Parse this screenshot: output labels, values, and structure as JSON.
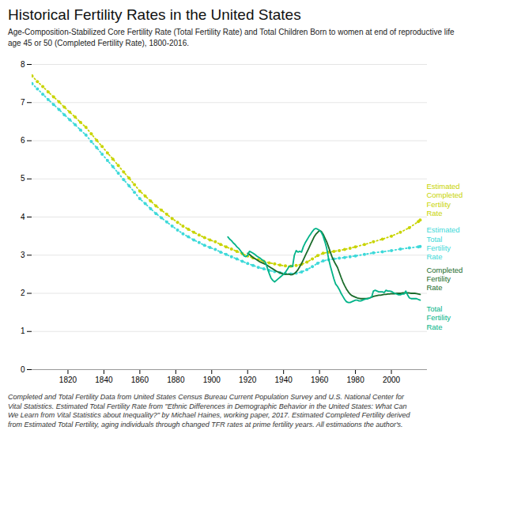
{
  "chart_data": {
    "type": "line",
    "title": "Historical Fertility Rates in the United States",
    "subtitle": "Age-Composition-Stabilized Core Fertility Rate (Total Fertility Rate) and Total Children Born to women at end of reproductive life\nage 45 or 50 (Completed Fertility Rate), 1800-2016.",
    "footnote": "Completed and Total Fertility Data from United States Census Bureau Current Population Survey and U.S. National Center for\nVital Statistics. Estimated Total Fertility Rate from \"Ethnic Differences in Demographic Behavior in the United States: What Can\nWe Learn from Vital Statistics about Inequality?\" by Michael Haines, working paper, 2017. Estimated Completed Fertility derived\nfrom Estimated Total Fertility, aging individuals through changed TFR rates at prime fertility years. All estimations the author's.",
    "xlim": [
      1800,
      2020
    ],
    "ylim": [
      0,
      8
    ],
    "yticks": [
      0,
      1,
      2,
      3,
      4,
      5,
      6,
      7,
      8
    ],
    "xticks": [
      1820,
      1840,
      1860,
      1880,
      1900,
      1920,
      1940,
      1960,
      1980,
      2000
    ],
    "grid": true,
    "series": [
      {
        "name": "Estimated Completed Fertility Rate",
        "color": "#c8d400",
        "line_style": "dotted",
        "marker": "circle",
        "x": [
          1800,
          1803,
          1806,
          1809,
          1812,
          1815,
          1818,
          1821,
          1824,
          1827,
          1830,
          1833,
          1836,
          1839,
          1842,
          1845,
          1848,
          1851,
          1854,
          1857,
          1860,
          1863,
          1866,
          1869,
          1872,
          1875,
          1878,
          1881,
          1884,
          1887,
          1890,
          1893,
          1896,
          1899,
          1902,
          1905,
          1908,
          1911,
          1914,
          1917,
          1920,
          1923,
          1926,
          1929,
          1932,
          1935,
          1938,
          1941,
          1944,
          1947,
          1950,
          1953,
          1956,
          1959,
          1962,
          1965,
          1968,
          1971,
          1974,
          1977,
          1980,
          1985,
          1990,
          1995,
          2000,
          2005,
          2010,
          2015,
          2016
        ],
        "values": [
          7.7,
          7.55,
          7.42,
          7.28,
          7.15,
          7.02,
          6.88,
          6.75,
          6.62,
          6.48,
          6.35,
          6.18,
          6.01,
          5.85,
          5.68,
          5.52,
          5.35,
          5.18,
          5.02,
          4.85,
          4.68,
          4.55,
          4.42,
          4.29,
          4.18,
          4.07,
          3.96,
          3.86,
          3.76,
          3.68,
          3.6,
          3.53,
          3.46,
          3.4,
          3.35,
          3.28,
          3.22,
          3.16,
          3.1,
          3.04,
          2.98,
          2.93,
          2.88,
          2.84,
          2.8,
          2.77,
          2.74,
          2.72,
          2.71,
          2.73,
          2.76,
          2.82,
          2.9,
          2.99,
          3.05,
          3.08,
          3.1,
          3.12,
          3.15,
          3.18,
          3.22,
          3.28,
          3.35,
          3.42,
          3.5,
          3.6,
          3.72,
          3.88,
          3.92
        ]
      },
      {
        "name": "Estimated Total Fertility Rate",
        "color": "#3dd9d9",
        "line_style": "dotted",
        "marker": "circle",
        "x": [
          1800,
          1803,
          1806,
          1809,
          1812,
          1815,
          1818,
          1821,
          1824,
          1827,
          1830,
          1833,
          1836,
          1839,
          1842,
          1845,
          1848,
          1851,
          1854,
          1857,
          1860,
          1863,
          1866,
          1869,
          1872,
          1875,
          1878,
          1881,
          1884,
          1887,
          1890,
          1893,
          1896,
          1899,
          1902,
          1905,
          1908,
          1911,
          1914,
          1917,
          1920,
          1923,
          1926,
          1929,
          1932,
          1935,
          1938,
          1941,
          1944,
          1947,
          1950,
          1953,
          1956,
          1959,
          1962,
          1965,
          1968,
          1971,
          1974,
          1977,
          1980,
          1985,
          1990,
          1995,
          2000,
          2005,
          2010,
          2015,
          2016
        ],
        "values": [
          7.5,
          7.36,
          7.22,
          7.08,
          6.95,
          6.82,
          6.68,
          6.55,
          6.42,
          6.28,
          6.15,
          5.98,
          5.82,
          5.65,
          5.48,
          5.32,
          5.15,
          4.98,
          4.82,
          4.65,
          4.48,
          4.35,
          4.22,
          4.09,
          3.98,
          3.87,
          3.76,
          3.66,
          3.56,
          3.48,
          3.4,
          3.33,
          3.26,
          3.2,
          3.15,
          3.08,
          3.02,
          2.96,
          2.9,
          2.84,
          2.78,
          2.73,
          2.68,
          2.64,
          2.6,
          2.57,
          2.54,
          2.52,
          2.51,
          2.53,
          2.56,
          2.62,
          2.7,
          2.79,
          2.85,
          2.88,
          2.9,
          2.92,
          2.94,
          2.96,
          2.98,
          3.02,
          3.06,
          3.09,
          3.12,
          3.16,
          3.19,
          3.22,
          3.23
        ]
      },
      {
        "name": "Completed Fertility Rate",
        "color": "#1a6b2a",
        "line_style": "solid",
        "x": [
          1920,
          1921,
          1922,
          1923,
          1924,
          1925,
          1926,
          1927,
          1928,
          1929,
          1930,
          1931,
          1932,
          1933,
          1934,
          1935,
          1936,
          1937,
          1938,
          1939,
          1940,
          1941,
          1942,
          1943,
          1944,
          1945,
          1946,
          1947,
          1948,
          1949,
          1950,
          1951,
          1952,
          1953,
          1954,
          1955,
          1956,
          1957,
          1958,
          1959,
          1960,
          1961,
          1962,
          1963,
          1964,
          1965,
          1966,
          1967,
          1968,
          1969,
          1970,
          1971,
          1972,
          1973,
          1974,
          1975,
          1976,
          1977,
          1978,
          1979,
          1980,
          1981,
          1982,
          1983,
          1984,
          1985,
          1986,
          1987,
          1988,
          1989,
          1990,
          1991,
          1992,
          1993,
          1994,
          1995,
          1996,
          1997,
          1998,
          1999,
          2000,
          2001,
          2002,
          2003,
          2004,
          2005,
          2006,
          2007,
          2008,
          2009,
          2010,
          2011,
          2012,
          2013,
          2014,
          2015,
          2016
        ],
        "values": [
          3.05,
          3.02,
          2.98,
          2.94,
          2.91,
          2.88,
          2.85,
          2.82,
          2.8,
          2.78,
          2.76,
          2.73,
          2.7,
          2.67,
          2.64,
          2.61,
          2.58,
          2.56,
          2.54,
          2.52,
          2.5,
          2.5,
          2.5,
          2.5,
          2.49,
          2.49,
          2.52,
          2.56,
          2.62,
          2.7,
          2.78,
          2.88,
          2.98,
          3.08,
          3.18,
          3.28,
          3.38,
          3.48,
          3.55,
          3.6,
          3.65,
          3.62,
          3.55,
          3.45,
          3.35,
          3.22,
          3.08,
          2.95,
          2.85,
          2.76,
          2.68,
          2.55,
          2.42,
          2.3,
          2.2,
          2.11,
          2.04,
          1.98,
          1.94,
          1.92,
          1.9,
          1.88,
          1.87,
          1.86,
          1.86,
          1.86,
          1.86,
          1.87,
          1.88,
          1.9,
          1.92,
          1.93,
          1.94,
          1.95,
          1.95,
          1.96,
          1.97,
          1.97,
          1.98,
          1.98,
          1.99,
          1.99,
          1.99,
          2.0,
          2.0,
          2.0,
          2.01,
          2.01,
          2.01,
          2.01,
          2.01,
          2.0,
          2.0,
          2.0,
          1.99,
          1.98,
          1.97
        ]
      },
      {
        "name": "Total Fertility Rate",
        "color": "#00b388",
        "line_style": "solid",
        "x": [
          1909,
          1910,
          1911,
          1912,
          1913,
          1914,
          1915,
          1916,
          1917,
          1918,
          1919,
          1920,
          1921,
          1922,
          1923,
          1924,
          1925,
          1926,
          1927,
          1928,
          1929,
          1930,
          1931,
          1932,
          1933,
          1934,
          1935,
          1936,
          1937,
          1938,
          1939,
          1940,
          1941,
          1942,
          1943,
          1944,
          1945,
          1946,
          1947,
          1948,
          1949,
          1950,
          1951,
          1952,
          1953,
          1954,
          1955,
          1956,
          1957,
          1958,
          1959,
          1960,
          1961,
          1962,
          1963,
          1964,
          1965,
          1966,
          1967,
          1968,
          1969,
          1970,
          1971,
          1972,
          1973,
          1974,
          1975,
          1976,
          1977,
          1978,
          1979,
          1980,
          1981,
          1982,
          1983,
          1984,
          1985,
          1986,
          1987,
          1988,
          1989,
          1990,
          1991,
          1992,
          1993,
          1994,
          1995,
          1996,
          1997,
          1998,
          1999,
          2000,
          2001,
          2002,
          2003,
          2004,
          2005,
          2006,
          2007,
          2008,
          2009,
          2010,
          2011,
          2012,
          2013,
          2014,
          2015,
          2016
        ],
        "values": [
          3.48,
          3.42,
          3.38,
          3.32,
          3.28,
          3.22,
          3.18,
          3.12,
          3.05,
          2.98,
          2.96,
          3.0,
          3.1,
          3.08,
          3.05,
          3.02,
          2.98,
          2.95,
          2.92,
          2.88,
          2.85,
          2.8,
          2.66,
          2.52,
          2.4,
          2.34,
          2.3,
          2.34,
          2.38,
          2.42,
          2.46,
          2.5,
          2.55,
          2.62,
          2.7,
          2.72,
          2.7,
          3.0,
          3.12,
          3.08,
          3.1,
          3.08,
          3.22,
          3.32,
          3.4,
          3.48,
          3.55,
          3.62,
          3.68,
          3.7,
          3.68,
          3.65,
          3.6,
          3.5,
          3.35,
          3.18,
          2.92,
          2.72,
          2.55,
          2.38,
          2.24,
          2.18,
          2.1,
          2.0,
          1.92,
          1.84,
          1.78,
          1.76,
          1.76,
          1.78,
          1.8,
          1.82,
          1.82,
          1.8,
          1.8,
          1.82,
          1.84,
          1.85,
          1.86,
          1.88,
          1.9,
          2.06,
          2.08,
          2.06,
          2.04,
          2.04,
          2.04,
          2.02,
          2.08,
          2.06,
          2.06,
          2.05,
          2.02,
          2.0,
          1.98,
          1.96,
          1.96,
          1.98,
          1.98,
          2.06,
          1.96,
          1.88,
          1.86,
          1.86,
          1.86,
          1.86,
          1.84,
          1.82
        ]
      }
    ]
  }
}
